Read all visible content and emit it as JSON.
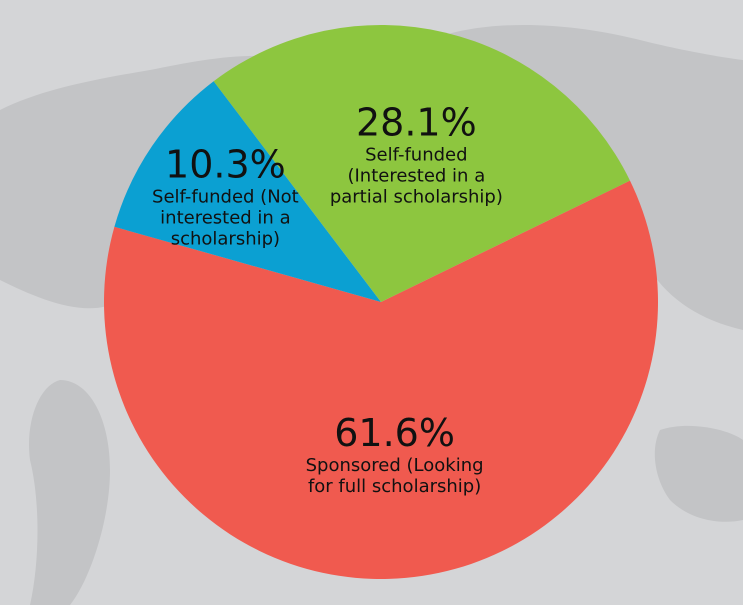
{
  "chart_data": {
    "type": "pie",
    "categories": [
      "Sponsored (Looking for full scholarship)",
      "Self-funded (Not interested in a scholarship)",
      "Self-funded (Interested in a partial scholarship)"
    ],
    "values": [
      61.6,
      10.3,
      28.1
    ],
    "value_labels": [
      "61.6%",
      "10.3%",
      "28.1%"
    ],
    "colors": [
      "#f05a4f",
      "#0ba0d2",
      "#8dc63f"
    ]
  }
}
